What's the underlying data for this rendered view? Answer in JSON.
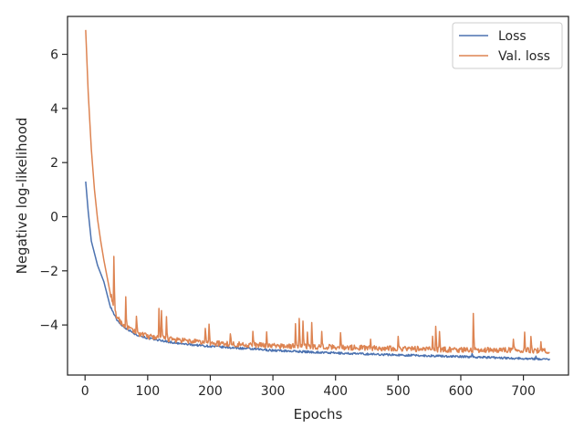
{
  "chart_data": {
    "type": "line",
    "title": "",
    "xlabel": "Epochs",
    "ylabel": "Negative log-likelihood",
    "xlim": [
      -28,
      772
    ],
    "ylim": [
      -5.85,
      7.4
    ],
    "x_ticks": [
      0,
      100,
      200,
      300,
      400,
      500,
      600,
      700
    ],
    "y_ticks": [
      6,
      4,
      2,
      0,
      -2,
      -4
    ],
    "grid": false,
    "legend_position": "top-right",
    "x_range": [
      1,
      742
    ],
    "series": [
      {
        "name": "Loss",
        "color": "#4c72b0",
        "key_points": [
          [
            1,
            1.3
          ],
          [
            5,
            0.2
          ],
          [
            10,
            -0.9
          ],
          [
            20,
            -1.8
          ],
          [
            30,
            -2.4
          ],
          [
            40,
            -3.3
          ],
          [
            50,
            -3.8
          ],
          [
            60,
            -4.05
          ],
          [
            80,
            -4.35
          ],
          [
            100,
            -4.5
          ],
          [
            150,
            -4.7
          ],
          [
            200,
            -4.8
          ],
          [
            300,
            -4.95
          ],
          [
            400,
            -5.05
          ],
          [
            500,
            -5.12
          ],
          [
            600,
            -5.18
          ],
          [
            700,
            -5.25
          ],
          [
            742,
            -5.28
          ]
        ],
        "noise": 0.035,
        "spikes": [
          [
            618,
            0.15
          ],
          [
            720,
            0.1
          ]
        ]
      },
      {
        "name": "Val. loss",
        "color": "#dd8452",
        "key_points": [
          [
            1,
            6.9
          ],
          [
            5,
            4.6
          ],
          [
            10,
            2.5
          ],
          [
            15,
            1.0
          ],
          [
            20,
            -0.1
          ],
          [
            25,
            -0.9
          ],
          [
            30,
            -1.6
          ],
          [
            35,
            -2.2
          ],
          [
            40,
            -2.8
          ],
          [
            45,
            -3.3
          ],
          [
            50,
            -3.7
          ],
          [
            60,
            -4.0
          ],
          [
            80,
            -4.3
          ],
          [
            100,
            -4.45
          ],
          [
            150,
            -4.6
          ],
          [
            200,
            -4.7
          ],
          [
            300,
            -4.8
          ],
          [
            400,
            -4.85
          ],
          [
            500,
            -4.9
          ],
          [
            600,
            -4.95
          ],
          [
            700,
            -4.95
          ],
          [
            742,
            -5.0
          ]
        ],
        "noise": 0.09,
        "spikes": [
          [
            46,
            1.8
          ],
          [
            65,
            1.0
          ],
          [
            82,
            0.7
          ],
          [
            118,
            1.1
          ],
          [
            122,
            1.0
          ],
          [
            130,
            0.8
          ],
          [
            192,
            0.6
          ],
          [
            198,
            0.7
          ],
          [
            232,
            0.4
          ],
          [
            268,
            0.5
          ],
          [
            290,
            0.5
          ],
          [
            336,
            0.9
          ],
          [
            342,
            1.0
          ],
          [
            348,
            0.9
          ],
          [
            355,
            0.6
          ],
          [
            362,
            0.8
          ],
          [
            378,
            0.5
          ],
          [
            408,
            0.6
          ],
          [
            456,
            0.3
          ],
          [
            500,
            0.4
          ],
          [
            555,
            0.5
          ],
          [
            560,
            0.9
          ],
          [
            566,
            0.6
          ],
          [
            620,
            1.3
          ],
          [
            684,
            0.4
          ],
          [
            702,
            0.6
          ],
          [
            712,
            0.5
          ],
          [
            728,
            0.4
          ]
        ]
      }
    ]
  }
}
